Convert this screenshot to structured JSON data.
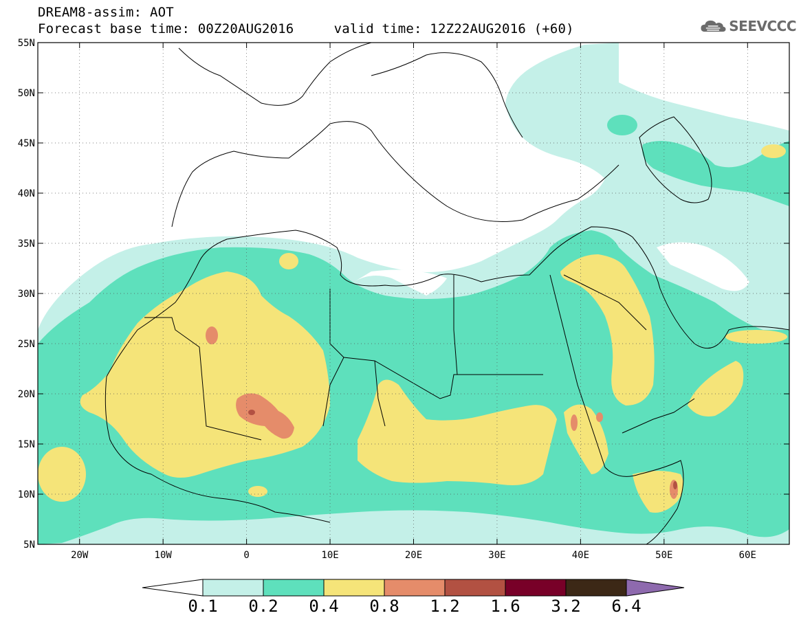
{
  "header": {
    "title_line1": "DREAM8-assim: AOT",
    "title_line2": "Forecast base time: 00Z20AUG2016     valid time: 12Z22AUG2016 (+60)",
    "logo_text": "SEEVCCC",
    "logo_icon": "cloud-icon"
  },
  "axes": {
    "lat_labels": [
      "55N",
      "50N",
      "45N",
      "40N",
      "35N",
      "30N",
      "25N",
      "20N",
      "15N",
      "10N",
      "5N"
    ],
    "lon_labels": [
      "20W",
      "10W",
      "0",
      "10E",
      "20E",
      "30E",
      "40E",
      "50E",
      "60E"
    ],
    "lat_range": [
      5,
      55
    ],
    "lon_range": [
      -25,
      65
    ]
  },
  "colorbar": {
    "labels": [
      "0.1",
      "0.2",
      "0.4",
      "0.8",
      "1.2",
      "1.6",
      "3.2",
      "6.4"
    ],
    "colors": [
      "#ffffff",
      "#c4f0e8",
      "#5ee0bc",
      "#f5e479",
      "#e58c6a",
      "#b25142",
      "#780028",
      "#3c2816",
      "#8e6aae"
    ]
  },
  "legend_colors": {
    "0.1-0.2": "#c4f0e8",
    "0.2-0.4": "#5ee0bc",
    "0.4-0.8": "#f5e479",
    "0.8-1.2": "#e58c6a",
    "1.2-1.6": "#b25142"
  }
}
